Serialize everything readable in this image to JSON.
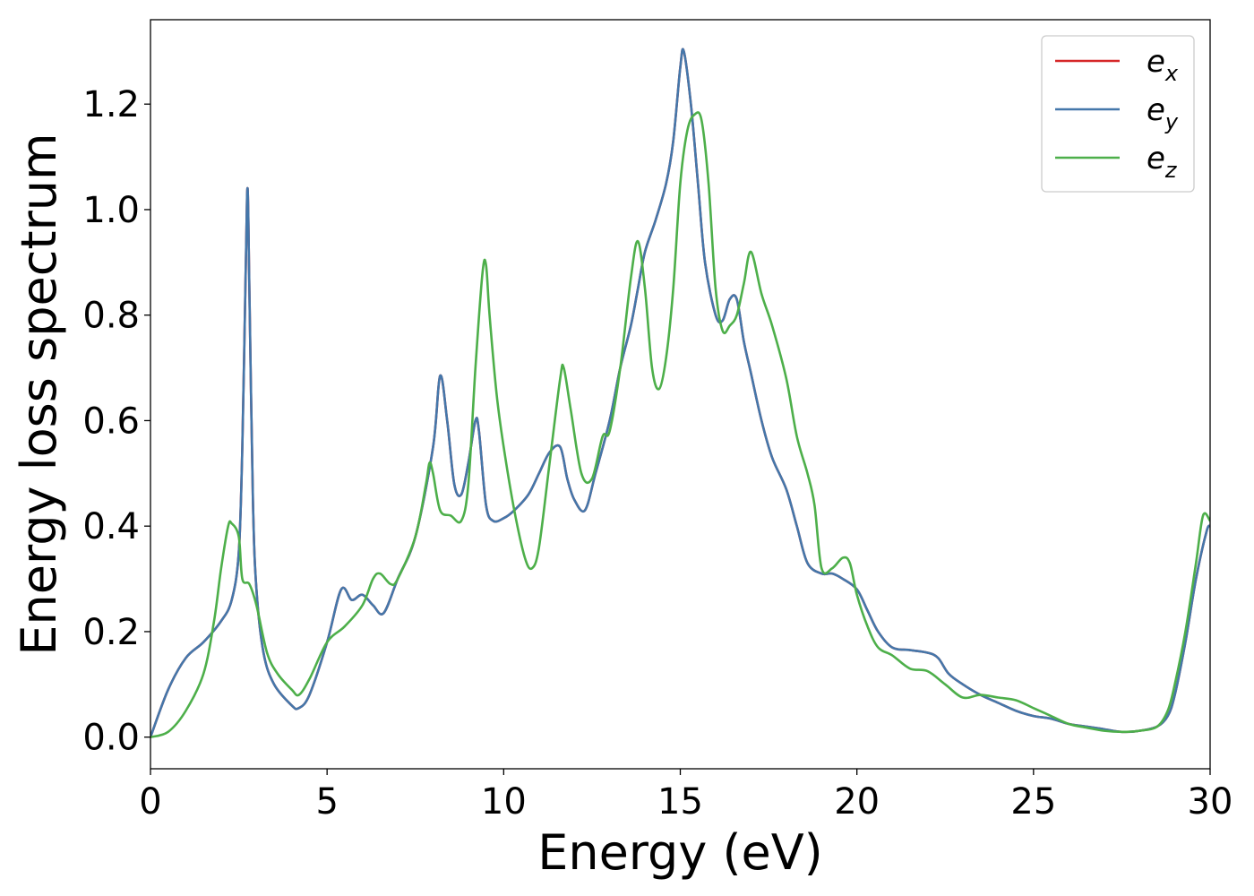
{
  "chart_data": {
    "type": "line",
    "title": "",
    "xlabel": "Energy (eV)",
    "ylabel": "Energy loss spectrum",
    "xlim": [
      0,
      30
    ],
    "ylim": [
      -0.06,
      1.36
    ],
    "xticks": [
      0,
      5,
      10,
      15,
      20,
      25,
      30
    ],
    "xtick_labels": [
      "0",
      "5",
      "10",
      "15",
      "20",
      "25",
      "30"
    ],
    "yticks": [
      0.0,
      0.2,
      0.4,
      0.6,
      0.8,
      1.0,
      1.2
    ],
    "ytick_labels": [
      "0.0",
      "0.2",
      "0.4",
      "0.6",
      "0.8",
      "1.0",
      "1.2"
    ],
    "grid": false,
    "legend_position": "top-right",
    "series": [
      {
        "name": "e_x",
        "label_base": "e",
        "label_sub": "x",
        "color": "#d62728",
        "x": [
          0,
          0.5,
          1.0,
          1.5,
          2.0,
          2.3,
          2.5,
          2.6,
          2.7,
          2.75,
          2.8,
          2.9,
          3.0,
          3.2,
          3.5,
          4.0,
          4.2,
          4.5,
          5.0,
          5.4,
          5.7,
          6.0,
          6.3,
          6.6,
          7.0,
          7.5,
          8.0,
          8.2,
          8.4,
          8.6,
          8.8,
          9.0,
          9.2,
          9.3,
          9.5,
          9.7,
          10.0,
          10.3,
          10.7,
          11.0,
          11.3,
          11.6,
          11.8,
          12.0,
          12.3,
          12.6,
          13.0,
          13.3,
          13.6,
          13.8,
          14.0,
          14.3,
          14.6,
          14.8,
          15.0,
          15.1,
          15.3,
          15.5,
          15.7,
          16.0,
          16.2,
          16.4,
          16.6,
          16.8,
          17.0,
          17.3,
          17.6,
          18.0,
          18.3,
          18.6,
          19.0,
          19.3,
          19.6,
          20.0,
          20.3,
          20.6,
          21.0,
          21.5,
          22.0,
          22.3,
          22.6,
          23.0,
          23.5,
          24.0,
          24.5,
          25.0,
          25.5,
          26.0,
          26.5,
          27.0,
          27.5,
          28.0,
          28.5,
          28.8,
          29.0,
          29.3,
          29.6,
          29.9,
          30.0
        ],
        "y": [
          0.0,
          0.09,
          0.15,
          0.18,
          0.22,
          0.26,
          0.35,
          0.55,
          0.9,
          1.04,
          0.85,
          0.45,
          0.28,
          0.16,
          0.1,
          0.06,
          0.055,
          0.08,
          0.18,
          0.28,
          0.26,
          0.27,
          0.25,
          0.235,
          0.3,
          0.38,
          0.55,
          0.685,
          0.6,
          0.48,
          0.46,
          0.52,
          0.6,
          0.58,
          0.44,
          0.41,
          0.415,
          0.43,
          0.46,
          0.5,
          0.54,
          0.55,
          0.49,
          0.45,
          0.43,
          0.5,
          0.6,
          0.7,
          0.78,
          0.85,
          0.92,
          0.98,
          1.05,
          1.13,
          1.27,
          1.3,
          1.2,
          1.05,
          0.9,
          0.8,
          0.79,
          0.83,
          0.83,
          0.75,
          0.69,
          0.6,
          0.53,
          0.47,
          0.4,
          0.33,
          0.31,
          0.31,
          0.3,
          0.28,
          0.24,
          0.2,
          0.17,
          0.165,
          0.16,
          0.15,
          0.12,
          0.1,
          0.08,
          0.065,
          0.05,
          0.04,
          0.035,
          0.025,
          0.02,
          0.015,
          0.01,
          0.012,
          0.02,
          0.04,
          0.08,
          0.18,
          0.3,
          0.39,
          0.4
        ]
      },
      {
        "name": "e_y",
        "label_base": "e",
        "label_sub": "y",
        "color": "#4477aa",
        "x": [
          0,
          0.5,
          1.0,
          1.5,
          2.0,
          2.3,
          2.5,
          2.6,
          2.7,
          2.75,
          2.8,
          2.9,
          3.0,
          3.2,
          3.5,
          4.0,
          4.2,
          4.5,
          5.0,
          5.4,
          5.7,
          6.0,
          6.3,
          6.6,
          7.0,
          7.5,
          8.0,
          8.2,
          8.4,
          8.6,
          8.8,
          9.0,
          9.2,
          9.3,
          9.5,
          9.7,
          10.0,
          10.3,
          10.7,
          11.0,
          11.3,
          11.6,
          11.8,
          12.0,
          12.3,
          12.6,
          13.0,
          13.3,
          13.6,
          13.8,
          14.0,
          14.3,
          14.6,
          14.8,
          15.0,
          15.1,
          15.3,
          15.5,
          15.7,
          16.0,
          16.2,
          16.4,
          16.6,
          16.8,
          17.0,
          17.3,
          17.6,
          18.0,
          18.3,
          18.6,
          19.0,
          19.3,
          19.6,
          20.0,
          20.3,
          20.6,
          21.0,
          21.5,
          22.0,
          22.3,
          22.6,
          23.0,
          23.5,
          24.0,
          24.5,
          25.0,
          25.5,
          26.0,
          26.5,
          27.0,
          27.5,
          28.0,
          28.5,
          28.8,
          29.0,
          29.3,
          29.6,
          29.9,
          30.0
        ],
        "y": [
          0.0,
          0.09,
          0.15,
          0.18,
          0.22,
          0.26,
          0.35,
          0.55,
          0.9,
          1.04,
          0.85,
          0.45,
          0.28,
          0.16,
          0.1,
          0.06,
          0.055,
          0.08,
          0.18,
          0.28,
          0.26,
          0.27,
          0.25,
          0.235,
          0.3,
          0.38,
          0.55,
          0.685,
          0.6,
          0.48,
          0.46,
          0.52,
          0.6,
          0.58,
          0.44,
          0.41,
          0.415,
          0.43,
          0.46,
          0.5,
          0.54,
          0.55,
          0.49,
          0.45,
          0.43,
          0.5,
          0.6,
          0.7,
          0.78,
          0.85,
          0.92,
          0.98,
          1.05,
          1.13,
          1.27,
          1.3,
          1.2,
          1.05,
          0.9,
          0.8,
          0.79,
          0.83,
          0.83,
          0.75,
          0.69,
          0.6,
          0.53,
          0.47,
          0.4,
          0.33,
          0.31,
          0.31,
          0.3,
          0.28,
          0.24,
          0.2,
          0.17,
          0.165,
          0.16,
          0.15,
          0.12,
          0.1,
          0.08,
          0.065,
          0.05,
          0.04,
          0.035,
          0.025,
          0.02,
          0.015,
          0.01,
          0.012,
          0.02,
          0.04,
          0.08,
          0.18,
          0.3,
          0.39,
          0.4
        ]
      },
      {
        "name": "e_z",
        "label_base": "e",
        "label_sub": "z",
        "color": "#4daf4a",
        "x": [
          0,
          0.5,
          1.0,
          1.5,
          1.8,
          2.0,
          2.2,
          2.3,
          2.5,
          2.6,
          2.8,
          3.0,
          3.3,
          3.6,
          4.0,
          4.2,
          4.5,
          5.0,
          5.5,
          6.0,
          6.3,
          6.5,
          6.8,
          7.0,
          7.5,
          7.8,
          7.9,
          8.0,
          8.2,
          8.5,
          8.8,
          9.0,
          9.2,
          9.4,
          9.5,
          9.6,
          9.8,
          10.0,
          10.3,
          10.6,
          10.8,
          11.0,
          11.3,
          11.6,
          11.7,
          11.9,
          12.2,
          12.5,
          12.8,
          13.0,
          13.3,
          13.6,
          13.8,
          14.0,
          14.2,
          14.4,
          14.6,
          14.8,
          15.0,
          15.2,
          15.4,
          15.6,
          15.8,
          16.0,
          16.2,
          16.4,
          16.6,
          16.8,
          17.0,
          17.3,
          17.6,
          18.0,
          18.3,
          18.6,
          18.8,
          19.0,
          19.3,
          19.6,
          19.8,
          20.0,
          20.3,
          20.6,
          21.0,
          21.5,
          22.0,
          22.5,
          23.0,
          23.5,
          24.0,
          24.5,
          25.0,
          25.5,
          26.0,
          26.5,
          27.0,
          27.5,
          28.0,
          28.5,
          28.8,
          29.0,
          29.3,
          29.6,
          29.8,
          30.0
        ],
        "y": [
          0.0,
          0.01,
          0.05,
          0.12,
          0.22,
          0.32,
          0.4,
          0.405,
          0.38,
          0.3,
          0.29,
          0.25,
          0.16,
          0.12,
          0.09,
          0.08,
          0.11,
          0.18,
          0.21,
          0.25,
          0.3,
          0.31,
          0.29,
          0.3,
          0.38,
          0.48,
          0.52,
          0.5,
          0.43,
          0.42,
          0.41,
          0.48,
          0.7,
          0.88,
          0.895,
          0.8,
          0.65,
          0.55,
          0.43,
          0.34,
          0.32,
          0.36,
          0.52,
          0.68,
          0.7,
          0.62,
          0.5,
          0.49,
          0.57,
          0.58,
          0.7,
          0.87,
          0.94,
          0.85,
          0.7,
          0.66,
          0.72,
          0.85,
          1.05,
          1.15,
          1.18,
          1.17,
          1.05,
          0.85,
          0.77,
          0.78,
          0.8,
          0.86,
          0.92,
          0.84,
          0.78,
          0.68,
          0.57,
          0.5,
          0.44,
          0.32,
          0.32,
          0.34,
          0.33,
          0.27,
          0.21,
          0.17,
          0.155,
          0.13,
          0.125,
          0.1,
          0.075,
          0.08,
          0.075,
          0.07,
          0.055,
          0.04,
          0.025,
          0.018,
          0.012,
          0.01,
          0.012,
          0.02,
          0.05,
          0.1,
          0.2,
          0.33,
          0.42,
          0.41
        ]
      }
    ]
  }
}
